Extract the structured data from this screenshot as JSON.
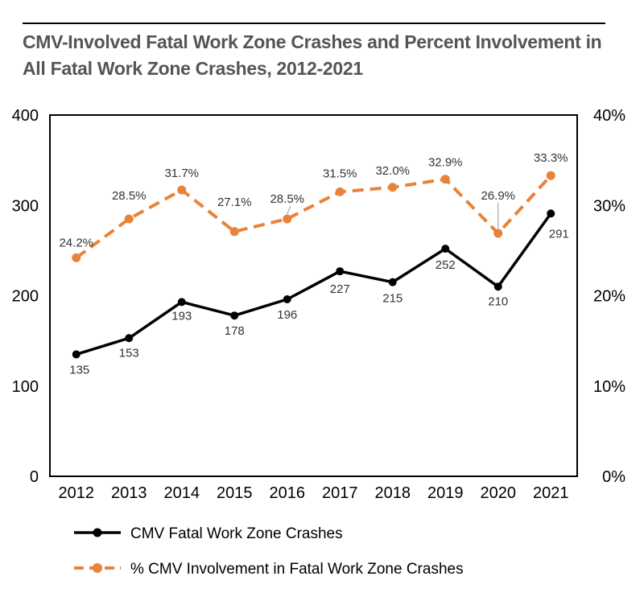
{
  "chart_data": {
    "type": "line",
    "title": "CMV-Involved Fatal Work Zone Crashes and Percent Involvement in All Fatal Work Zone Crashes, 2012-2021",
    "categories": [
      "2012",
      "2013",
      "2014",
      "2015",
      "2016",
      "2017",
      "2018",
      "2019",
      "2020",
      "2021"
    ],
    "y_left": {
      "ylim": [
        0,
        400
      ],
      "ticks": [
        "0",
        "100",
        "200",
        "300",
        "400"
      ]
    },
    "y_right": {
      "ylim": [
        0,
        40
      ],
      "ticks": [
        "0%",
        "10%",
        "20%",
        "30%",
        "40%"
      ]
    },
    "grid": false,
    "legend_position": "bottom-left",
    "series": [
      {
        "name": "CMV Fatal Work Zone Crashes",
        "axis": "left",
        "color": "#000000",
        "style": "solid",
        "values": [
          135,
          153,
          193,
          178,
          196,
          227,
          215,
          252,
          210,
          291
        ],
        "labels": [
          "135",
          "153",
          "193",
          "178",
          "196",
          "227",
          "215",
          "252",
          "210",
          "291"
        ]
      },
      {
        "name": "% CMV Involvement in Fatal Work Zone Crashes",
        "axis": "right",
        "color": "#e9833a",
        "style": "dashed",
        "values": [
          24.2,
          28.5,
          31.7,
          27.1,
          28.5,
          31.5,
          32.0,
          32.9,
          26.9,
          33.3
        ],
        "labels": [
          "24.2%",
          "28.5%",
          "31.7%",
          "27.1%",
          "28.5%",
          "31.5%",
          "32.0%",
          "32.9%",
          "26.9%",
          "33.3%"
        ]
      }
    ]
  }
}
